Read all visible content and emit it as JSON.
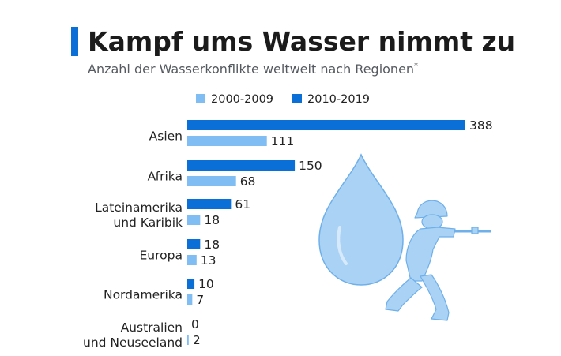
{
  "chart_data": {
    "type": "bar",
    "orientation": "horizontal",
    "title": "Kampf ums Wasser nimmt zu",
    "subtitle": "Anzahl der Wasserkonflikte weltweit nach Regionen",
    "subtitle_mark": "*",
    "categories": [
      [
        "Asien"
      ],
      [
        "Afrika"
      ],
      [
        "Lateinamerika",
        "und Karibik"
      ],
      [
        "Europa"
      ],
      [
        "Nordamerika"
      ],
      [
        "Australien",
        "und Neuseeland"
      ]
    ],
    "series": [
      {
        "name": "2010-2019",
        "color": "#0a6fd6",
        "values": [
          388,
          150,
          61,
          18,
          10,
          0
        ]
      },
      {
        "name": "2000-2009",
        "color": "#7fbdf2",
        "values": [
          111,
          68,
          18,
          13,
          7,
          2
        ]
      }
    ],
    "legend": [
      "2000-2009",
      "2010-2019"
    ],
    "legend_colors": [
      "#7fbdf2",
      "#0a6fd6"
    ],
    "legend_position": "top",
    "xlim": [
      0,
      388
    ],
    "grid": false,
    "accent_color": "#0a6fd6",
    "illustration_icons": [
      "water-drop-icon",
      "soldier-icon"
    ]
  }
}
